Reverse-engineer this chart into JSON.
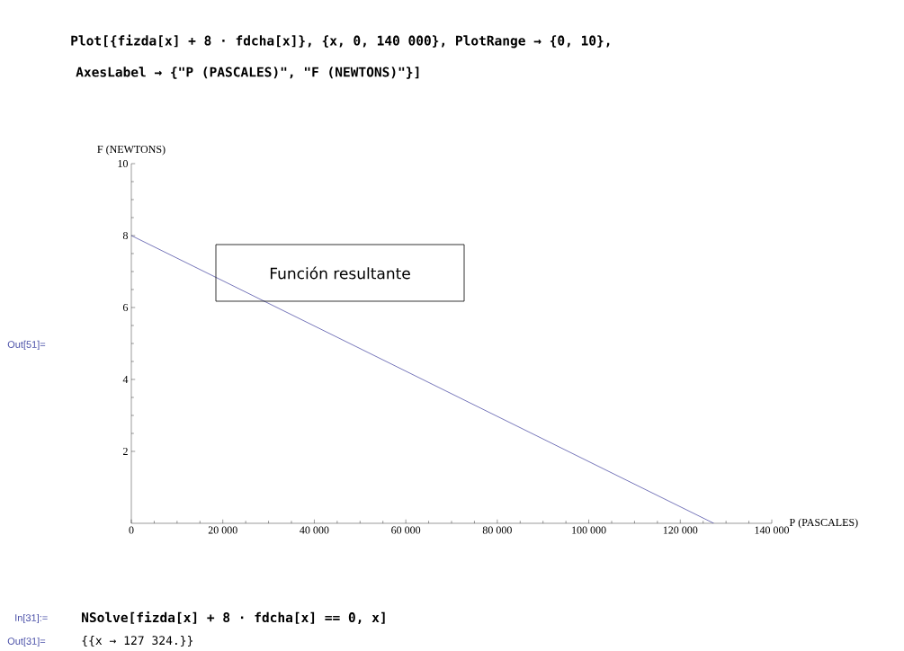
{
  "chart_data": {
    "type": "line",
    "xlabel": "P (PASCALES)",
    "ylabel": "F (NEWTONS)",
    "x": [
      0,
      127324
    ],
    "series": [
      {
        "color": "#3c3c9c",
        "values": [
          8,
          0
        ]
      }
    ],
    "xlim": [
      0,
      140000
    ],
    "ylim": [
      0,
      10
    ],
    "xticks": [
      0,
      {
        "value": 20000,
        "label": "20 000"
      },
      {
        "value": 40000,
        "label": "40 000"
      },
      {
        "value": 60000,
        "label": "60 000"
      },
      {
        "value": 80000,
        "label": "80 000"
      },
      {
        "value": 100000,
        "label": "100 000"
      },
      {
        "value": 120000,
        "label": "120 000"
      },
      {
        "value": 140000,
        "label": "140 000"
      }
    ],
    "yticks": [
      2,
      4,
      6,
      8,
      10
    ],
    "annotations": [
      "Plot[{fizda[x] + 8 · fdcha[x]}, {x, 0, 140 000}, PlotRange → {0, 10},",
      "AxesLabel → {\"P (PASCALES)\", \"F (NEWTONS)\"}]",
      "Out[51]=",
      "Función resultante",
      "In[31]:=",
      "NSolve[fizda[x] + 8 · fdcha[x] == 0, x]",
      "Out[31]=",
      "{{x → 127 324.}}"
    ]
  }
}
